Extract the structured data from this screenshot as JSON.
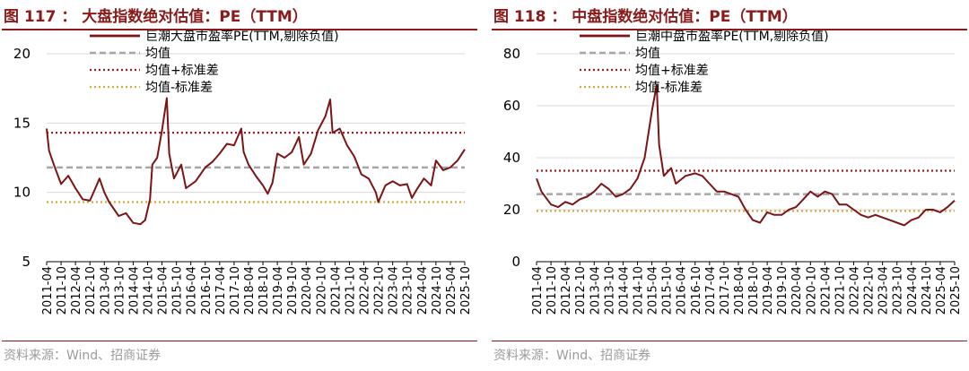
{
  "charts": [
    {
      "title": "图 117 ： 大盘指数绝对估值：PE（TTM）",
      "source": "资料来源：Wind、招商证券"
    },
    {
      "title": "图 118 ： 中盘指数绝对估值：PE（TTM）",
      "source": "资料来源：Wind、招商证券"
    }
  ],
  "colors": {
    "series": "#7b1416",
    "mean": "#a6a6a6",
    "upper": "#a8191c",
    "lower": "#d4a83a",
    "grid": "#d9d9d9",
    "title": "#8b1a1a"
  },
  "chart_data": [
    {
      "type": "line",
      "title": "图 117 ： 大盘指数绝对估值：PE（TTM）",
      "ylim": [
        5,
        20
      ],
      "yticks": [
        5,
        10,
        15,
        20
      ],
      "x_ticks": [
        "2011-04",
        "2011-10",
        "2012-04",
        "2012-10",
        "2013-04",
        "2013-10",
        "2014-04",
        "2014-10",
        "2015-04",
        "2015-10",
        "2016-04",
        "2016-10",
        "2017-04",
        "2017-10",
        "2018-04",
        "2018-10",
        "2019-04",
        "2019-10",
        "2020-04",
        "2020-10",
        "2021-04",
        "2021-10",
        "2022-04",
        "2022-10",
        "2023-04",
        "2023-10",
        "2024-04",
        "2024-10",
        "2025-04",
        "2025-10"
      ],
      "legend": [
        "巨潮大盘市盈率PE(TTM,剔除负值)",
        "均值",
        "均值+标准差",
        "均值-标准差"
      ],
      "mean": 11.8,
      "upper": 14.3,
      "lower": 9.3,
      "series": [
        {
          "name": "巨潮大盘市盈率PE(TTM,剔除负值)",
          "x": [
            "2011-04",
            "2011-05",
            "2011-07",
            "2011-10",
            "2012-01",
            "2012-04",
            "2012-07",
            "2012-10",
            "2012-12",
            "2013-02",
            "2013-04",
            "2013-06",
            "2013-10",
            "2014-01",
            "2014-04",
            "2014-07",
            "2014-09",
            "2014-11",
            "2014-12",
            "2015-02",
            "2015-04",
            "2015-06",
            "2015-07",
            "2015-09",
            "2015-12",
            "2016-02",
            "2016-06",
            "2016-10",
            "2017-01",
            "2017-04",
            "2017-07",
            "2017-10",
            "2018-01",
            "2018-02",
            "2018-04",
            "2018-07",
            "2018-10",
            "2018-12",
            "2019-02",
            "2019-04",
            "2019-07",
            "2019-10",
            "2020-01",
            "2020-03",
            "2020-06",
            "2020-09",
            "2020-12",
            "2021-02",
            "2021-03",
            "2021-06",
            "2021-09",
            "2021-12",
            "2022-03",
            "2022-06",
            "2022-09",
            "2022-10",
            "2023-01",
            "2023-04",
            "2023-07",
            "2023-10",
            "2023-12",
            "2024-02",
            "2024-05",
            "2024-08",
            "2024-10",
            "2025-01",
            "2025-04",
            "2025-07",
            "2025-10"
          ],
          "values": [
            14.6,
            13.0,
            12.0,
            10.6,
            11.2,
            10.3,
            9.5,
            9.4,
            10.2,
            11.0,
            10.0,
            9.3,
            8.3,
            8.5,
            7.8,
            7.7,
            8.0,
            9.5,
            12.0,
            12.5,
            14.5,
            16.8,
            12.8,
            11.0,
            12.0,
            10.3,
            10.8,
            11.8,
            12.2,
            12.8,
            13.5,
            13.4,
            14.6,
            12.9,
            12.0,
            11.2,
            10.5,
            9.9,
            10.7,
            12.8,
            12.5,
            12.9,
            14.0,
            12.0,
            12.8,
            14.5,
            15.5,
            16.7,
            14.3,
            14.6,
            13.4,
            12.6,
            11.3,
            11.0,
            10.0,
            9.3,
            10.5,
            10.8,
            10.5,
            10.6,
            9.6,
            10.2,
            11.0,
            10.5,
            12.3,
            11.6,
            11.8,
            12.3,
            13.1
          ]
        }
      ]
    },
    {
      "type": "line",
      "title": "图 118 ： 中盘指数绝对估值：PE（TTM）",
      "ylim": [
        0,
        80
      ],
      "yticks": [
        0,
        20,
        40,
        60,
        80
      ],
      "x_ticks": [
        "2011-04",
        "2011-10",
        "2012-04",
        "2012-10",
        "2013-04",
        "2013-10",
        "2014-04",
        "2014-10",
        "2015-04",
        "2015-10",
        "2016-04",
        "2016-10",
        "2017-04",
        "2017-10",
        "2018-04",
        "2018-10",
        "2019-04",
        "2019-10",
        "2020-04",
        "2020-10",
        "2021-04",
        "2021-10",
        "2022-04",
        "2022-10",
        "2023-04",
        "2023-10",
        "2024-04",
        "2024-10",
        "2025-04",
        "2025-10"
      ],
      "legend": [
        "巨潮中盘市盈率PE(TTM,剔除负值)",
        "均值",
        "均值+标准差",
        "均值-标准差"
      ],
      "mean": 26,
      "upper": 35,
      "lower": 19.5,
      "series": [
        {
          "name": "巨潮中盘市盈率PE(TTM,剔除负值)",
          "x": [
            "2011-04",
            "2011-06",
            "2011-10",
            "2012-01",
            "2012-04",
            "2012-07",
            "2012-10",
            "2013-01",
            "2013-04",
            "2013-07",
            "2013-10",
            "2014-01",
            "2014-04",
            "2014-07",
            "2014-10",
            "2015-01",
            "2015-04",
            "2015-06",
            "2015-07",
            "2015-09",
            "2015-12",
            "2016-02",
            "2016-06",
            "2016-10",
            "2017-01",
            "2017-04",
            "2017-07",
            "2017-10",
            "2018-01",
            "2018-04",
            "2018-07",
            "2018-10",
            "2019-01",
            "2019-04",
            "2019-07",
            "2019-10",
            "2020-01",
            "2020-04",
            "2020-07",
            "2020-10",
            "2021-01",
            "2021-04",
            "2021-07",
            "2021-10",
            "2022-01",
            "2022-04",
            "2022-07",
            "2022-10",
            "2023-01",
            "2023-04",
            "2023-07",
            "2023-10",
            "2024-01",
            "2024-04",
            "2024-07",
            "2024-10",
            "2025-01",
            "2025-04",
            "2025-07",
            "2025-10"
          ],
          "values": [
            32,
            27,
            22,
            21,
            23,
            22,
            24,
            25,
            27,
            30,
            28,
            25,
            26,
            28,
            32,
            40,
            58,
            68,
            45,
            33,
            36,
            30,
            33,
            34,
            33,
            30,
            27,
            27,
            26,
            25,
            20,
            16,
            15,
            19,
            18,
            18,
            20,
            21,
            24,
            27,
            25,
            27,
            26,
            22,
            22,
            20,
            18,
            17,
            18,
            17,
            16,
            15,
            14,
            16,
            17,
            20,
            20,
            19,
            21,
            23.5
          ]
        }
      ]
    }
  ]
}
